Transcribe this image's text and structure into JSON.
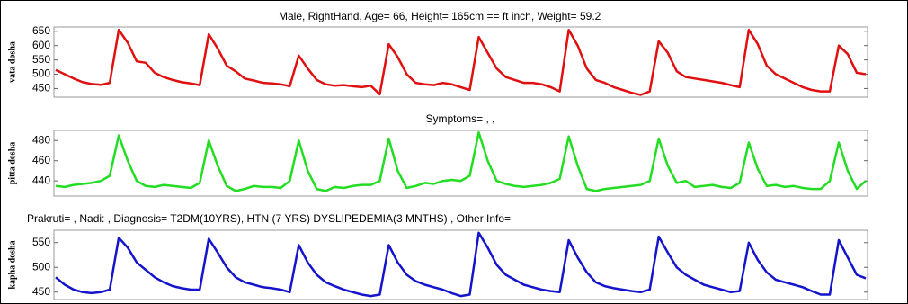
{
  "chart_data": [
    {
      "type": "line",
      "title": "Male,    RightHand,   Age= 66,   Height= 165cm ==   ft inch,   Weight= 59.2",
      "ylabel": "vata dosha",
      "ylim": [
        420,
        665
      ],
      "yticks": [
        450,
        500,
        550,
        600,
        650
      ],
      "series": [
        {
          "color": "#e01010",
          "values": [
            515,
            500,
            485,
            472,
            466,
            463,
            470,
            655,
            610,
            545,
            540,
            505,
            490,
            480,
            472,
            468,
            462,
            640,
            590,
            530,
            510,
            485,
            478,
            470,
            468,
            465,
            458,
            565,
            520,
            480,
            465,
            460,
            462,
            458,
            455,
            460,
            430,
            605,
            560,
            500,
            470,
            465,
            462,
            470,
            465,
            455,
            445,
            630,
            575,
            520,
            490,
            480,
            470,
            470,
            465,
            455,
            440,
            655,
            600,
            520,
            480,
            470,
            455,
            445,
            435,
            428,
            440,
            615,
            575,
            510,
            490,
            485,
            480,
            475,
            470,
            462,
            455,
            655,
            605,
            530,
            500,
            485,
            470,
            455,
            445,
            440,
            440,
            600,
            570,
            505,
            500
          ]
        }
      ]
    },
    {
      "type": "line",
      "title": "Symptoms=  ,  ,",
      "ylabel": "pitta dosha",
      "ylim": [
        425,
        490
      ],
      "yticks": [
        440,
        460,
        480
      ],
      "series": [
        {
          "color": "#22dd22",
          "values": [
            435,
            434,
            436,
            437,
            438,
            440,
            445,
            485,
            460,
            440,
            435,
            434,
            436,
            435,
            434,
            433,
            438,
            480,
            455,
            435,
            430,
            432,
            435,
            434,
            434,
            433,
            440,
            480,
            450,
            432,
            430,
            434,
            433,
            435,
            436,
            436,
            440,
            482,
            450,
            433,
            435,
            438,
            437,
            440,
            441,
            440,
            445,
            488,
            460,
            440,
            437,
            435,
            434,
            435,
            436,
            438,
            442,
            484,
            455,
            432,
            430,
            432,
            433,
            434,
            435,
            436,
            440,
            482,
            455,
            438,
            440,
            434,
            435,
            436,
            434,
            433,
            438,
            478,
            452,
            435,
            436,
            434,
            435,
            433,
            432,
            432,
            440,
            478,
            450,
            432,
            440
          ]
        }
      ]
    },
    {
      "type": "line",
      "title": "Prakruti=  ,   Nadi:  ,   Diagnosis=  T2DM(10YRS), HTN (7 YRS) DYSLIPEDEMIA(3 MNTHS) ,   Other Info=",
      "ylabel": "kapha dosha",
      "ylim": [
        435,
        575
      ],
      "yticks": [
        450,
        500,
        550
      ],
      "series": [
        {
          "color": "#1414cc",
          "values": [
            480,
            465,
            455,
            450,
            448,
            450,
            455,
            560,
            540,
            510,
            495,
            480,
            470,
            462,
            458,
            455,
            455,
            558,
            530,
            500,
            480,
            470,
            465,
            460,
            458,
            455,
            450,
            545,
            510,
            485,
            470,
            462,
            455,
            450,
            445,
            442,
            445,
            545,
            510,
            485,
            472,
            465,
            460,
            455,
            448,
            442,
            445,
            570,
            540,
            505,
            485,
            475,
            465,
            460,
            455,
            452,
            450,
            555,
            520,
            490,
            470,
            462,
            458,
            455,
            452,
            450,
            455,
            562,
            530,
            500,
            485,
            475,
            465,
            460,
            455,
            450,
            452,
            550,
            515,
            490,
            475,
            470,
            465,
            460,
            452,
            445,
            445,
            555,
            520,
            485,
            478
          ]
        }
      ]
    }
  ]
}
